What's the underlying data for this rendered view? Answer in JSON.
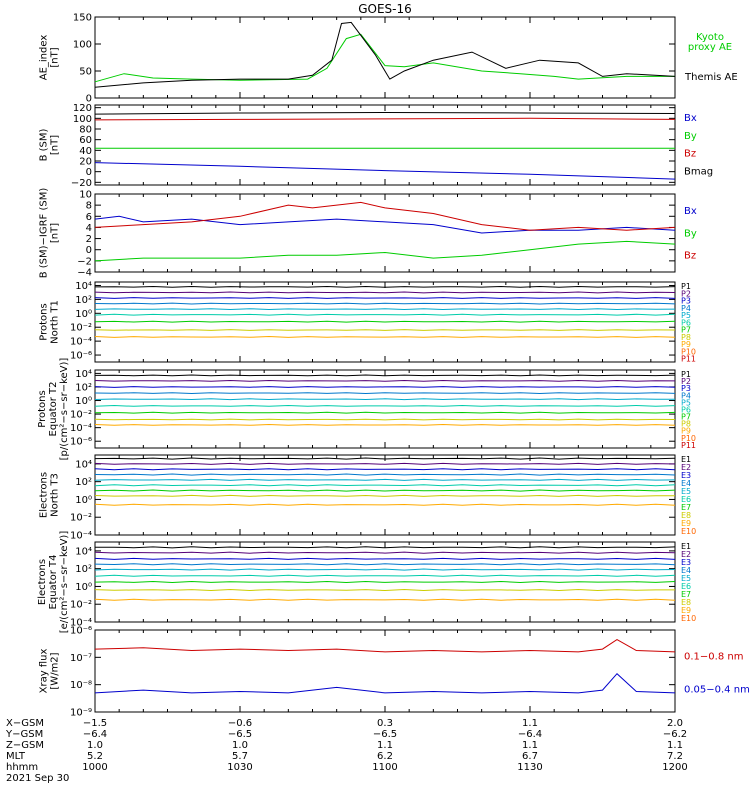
{
  "chart_data": {
    "type": "line",
    "title": "GOES-16",
    "x": [
      0,
      10,
      20,
      30,
      40,
      50,
      60,
      70,
      80,
      90,
      100,
      110,
      120
    ],
    "colors": {
      "black": "#000000",
      "blue": "#0000cc",
      "green": "#00cc00",
      "red": "#cc0000",
      "p_colors": [
        "#000000",
        "#550077",
        "#0000cc",
        "#0077cc",
        "#00aacc",
        "#00ccaa",
        "#00cc00",
        "#cccc00",
        "#ffaa00",
        "#ff6600",
        "#cc0000"
      ]
    },
    "panels": [
      {
        "id": "ae",
        "ylabel": [
          "AE_index",
          "[nT]"
        ],
        "yscale": "linear",
        "ylim": [
          0,
          150
        ],
        "ticks": [
          "0",
          "50",
          "100",
          "150"
        ],
        "tick_values": [
          0,
          50,
          100,
          150
        ],
        "legend": [
          {
            "label": "Kyoto",
            "color": "#00cc00"
          },
          {
            "label": "proxy AE",
            "color": "#00cc00"
          },
          {
            "label": "Themis AE",
            "color": "#000000"
          }
        ],
        "series": [
          {
            "name": "Kyoto proxy AE",
            "color": "#00cc00",
            "t": [
              0,
              6,
              12,
              20,
              30,
              44,
              48,
              52,
              55,
              60,
              64,
              70,
              80,
              88,
              95,
              100,
              110,
              120
            ],
            "v": [
              30,
              45,
              37,
              35,
              33,
              35,
              55,
              110,
              118,
              60,
              58,
              65,
              50,
              45,
              40,
              35,
              40,
              40
            ]
          },
          {
            "name": "Themis AE",
            "color": "#000000",
            "t": [
              0,
              10,
              20,
              30,
              40,
              45,
              49,
              51,
              53,
              58,
              61,
              64,
              70,
              78,
              85,
              92,
              100,
              105,
              110,
              120
            ],
            "v": [
              20,
              28,
              33,
              35,
              35,
              42,
              70,
              138,
              140,
              80,
              35,
              50,
              70,
              85,
              55,
              70,
              65,
              40,
              45,
              40
            ]
          }
        ]
      },
      {
        "id": "bsm",
        "ylabel": [
          "B (SM)",
          "[nT]"
        ],
        "yscale": "linear",
        "ylim": [
          -25,
          125
        ],
        "ticks": [
          "−20",
          "0",
          "20",
          "40",
          "60",
          "80",
          "100",
          "120"
        ],
        "tick_values": [
          -20,
          0,
          20,
          40,
          60,
          80,
          100,
          120
        ],
        "legend": [
          {
            "label": "Bx",
            "color": "#0000cc"
          },
          {
            "label": "By",
            "color": "#00cc00"
          },
          {
            "label": "Bz",
            "color": "#cc0000"
          },
          {
            "label": "Bmag",
            "color": "#000000"
          }
        ],
        "series": [
          {
            "name": "Bmag",
            "color": "#000000",
            "t": [
              0,
              30,
              60,
              90,
              120
            ],
            "v": [
              108,
              110,
              111,
              110,
              109
            ]
          },
          {
            "name": "Bz",
            "color": "#cc0000",
            "t": [
              0,
              30,
              60,
              90,
              120
            ],
            "v": [
              97,
              98,
              99,
              100,
              98
            ]
          },
          {
            "name": "By",
            "color": "#00cc00",
            "t": [
              0,
              30,
              60,
              90,
              120
            ],
            "v": [
              44,
              44,
              44,
              44,
              44
            ]
          },
          {
            "name": "Bx",
            "color": "#0000cc",
            "t": [
              0,
              30,
              60,
              90,
              120
            ],
            "v": [
              17,
              10,
              2,
              -5,
              -14
            ]
          }
        ]
      },
      {
        "id": "dbsm",
        "ylabel": [
          "B (SM)−IGRF (SM)",
          "[nT]"
        ],
        "yscale": "linear",
        "ylim": [
          -4,
          10
        ],
        "ticks": [
          "−4",
          "−2",
          "0",
          "2",
          "4",
          "6",
          "8",
          "10"
        ],
        "tick_values": [
          -4,
          -2,
          0,
          2,
          4,
          6,
          8,
          10
        ],
        "legend": [
          {
            "label": "Bx",
            "color": "#0000cc"
          },
          {
            "label": "By",
            "color": "#00cc00"
          },
          {
            "label": "Bz",
            "color": "#cc0000"
          }
        ],
        "series": [
          {
            "name": "Bx",
            "color": "#0000cc",
            "t": [
              0,
              5,
              10,
              20,
              30,
              40,
              50,
              60,
              70,
              80,
              90,
              100,
              110,
              120
            ],
            "v": [
              5.5,
              6,
              5,
              5.5,
              4.5,
              5,
              5.5,
              5,
              4.5,
              3,
              3.5,
              3.5,
              4,
              3.5
            ]
          },
          {
            "name": "Bz",
            "color": "#cc0000",
            "t": [
              0,
              10,
              20,
              30,
              40,
              45,
              50,
              55,
              60,
              70,
              80,
              90,
              100,
              110,
              120
            ],
            "v": [
              4,
              4.5,
              5,
              6,
              8,
              7.5,
              8,
              8.5,
              7.5,
              6.5,
              4.5,
              3.5,
              4,
              3.5,
              4
            ]
          },
          {
            "name": "By",
            "color": "#00cc00",
            "t": [
              0,
              10,
              20,
              30,
              40,
              50,
              60,
              70,
              80,
              90,
              100,
              110,
              120
            ],
            "v": [
              -2,
              -1.5,
              -1.5,
              -1.5,
              -1,
              -1,
              -0.5,
              -1.5,
              -1,
              0,
              1,
              1.5,
              1
            ]
          }
        ]
      },
      {
        "id": "pn",
        "ylabel": [
          "Protons",
          "North T1"
        ],
        "yscale": "log",
        "ylim": [
          -7,
          4.5
        ],
        "ticks": [
          "10⁴",
          "10²",
          "10⁰",
          "10⁻²",
          "10⁻⁴",
          "10⁻⁶"
        ],
        "tick_values": [
          4,
          2,
          0,
          -2,
          -4,
          -6
        ],
        "legend_small": [
          "P1",
          "P2",
          "P3",
          "P4",
          "P5",
          "P6",
          "P7",
          "P8",
          "P9",
          "P10",
          "P11"
        ],
        "levels": [
          3.8,
          3.0,
          2.2,
          1.4,
          0.6,
          -0.2,
          -1.2,
          -2.4,
          -3.4
        ]
      },
      {
        "id": "pe",
        "ylabel": [
          "Protons",
          "Equator T2",
          "[p/(cm²−s−sr−keV)]"
        ],
        "yscale": "log",
        "ylim": [
          -7,
          4.5
        ],
        "ticks": [
          "10⁴",
          "10²",
          "10⁰",
          "10⁻²",
          "10⁻⁴",
          "10⁻⁶"
        ],
        "tick_values": [
          4,
          2,
          0,
          -2,
          -4,
          -6
        ],
        "legend_small": [
          "P1",
          "P2",
          "P3",
          "P4",
          "P5",
          "P6",
          "P7",
          "P8",
          "P9",
          "P10",
          "P11"
        ],
        "levels": [
          3.7,
          2.9,
          2.0,
          1.1,
          0.2,
          -0.8,
          -1.8,
          -2.8,
          -3.6
        ]
      },
      {
        "id": "en",
        "ylabel": [
          "Electrons",
          "North T3"
        ],
        "yscale": "log",
        "ylim": [
          -4,
          5
        ],
        "ticks": [
          "10⁴",
          "10²",
          "10⁰",
          "10⁻²",
          "10⁻⁴"
        ],
        "tick_values": [
          4,
          2,
          0,
          -2,
          -4
        ],
        "legend_small": [
          "E1",
          "E2",
          "E3",
          "E4",
          "E5",
          "E6",
          "E7",
          "E8",
          "E9",
          "E10"
        ],
        "levels": [
          4.6,
          4.0,
          3.4,
          2.8,
          2.2,
          1.6,
          1.0,
          0.4,
          -0.6
        ]
      },
      {
        "id": "ee",
        "ylabel": [
          "Electrons",
          "Equator T4",
          "[e/(cm²−s−sr−keV)]"
        ],
        "yscale": "log",
        "ylim": [
          -4,
          5
        ],
        "ticks": [
          "10⁴",
          "10²",
          "10⁰",
          "10⁻²",
          "10⁻⁴"
        ],
        "tick_values": [
          4,
          2,
          0,
          -2,
          -4
        ],
        "legend_small": [
          "E1",
          "E2",
          "E3",
          "E4",
          "E5",
          "E6",
          "E7",
          "E8",
          "E9",
          "E10"
        ],
        "levels": [
          4.4,
          3.8,
          3.1,
          2.5,
          1.9,
          1.2,
          0.5,
          -0.4,
          -1.5
        ]
      },
      {
        "id": "xray",
        "ylabel": [
          "Xray flux",
          "[W/m2]"
        ],
        "yscale": "log",
        "ylim": [
          -9,
          -6
        ],
        "ticks": [
          "10⁻⁶",
          "10⁻⁷",
          "10⁻⁸",
          "10⁻⁹"
        ],
        "tick_values": [
          -6,
          -7,
          -8,
          -9
        ],
        "legend": [
          {
            "label": "0.1−0.8 nm",
            "color": "#cc0000"
          },
          {
            "label": "0.05−0.4 nm",
            "color": "#0000cc"
          }
        ],
        "series": [
          {
            "name": "0.1−0.8 nm",
            "color": "#cc0000",
            "t": [
              0,
              10,
              20,
              30,
              40,
              50,
              60,
              70,
              80,
              90,
              100,
              105,
              108,
              112,
              120
            ],
            "v": [
              -6.7,
              -6.65,
              -6.75,
              -6.7,
              -6.75,
              -6.7,
              -6.8,
              -6.75,
              -6.8,
              -6.75,
              -6.8,
              -6.7,
              -6.35,
              -6.75,
              -6.8
            ]
          },
          {
            "name": "0.05−0.4 nm",
            "color": "#0000cc",
            "t": [
              0,
              10,
              20,
              30,
              40,
              50,
              60,
              70,
              80,
              90,
              100,
              105,
              108,
              112,
              120
            ],
            "v": [
              -8.3,
              -8.2,
              -8.3,
              -8.25,
              -8.3,
              -8.1,
              -8.3,
              -8.25,
              -8.3,
              -8.25,
              -8.3,
              -8.2,
              -7.6,
              -8.25,
              -8.3
            ]
          }
        ]
      }
    ],
    "x_axis": {
      "rows": [
        {
          "label": "X−GSM",
          "values": [
            "−1.5",
            "−0.6",
            "0.3",
            "1.1",
            "2.0"
          ]
        },
        {
          "label": "Y−GSM",
          "values": [
            "−6.4",
            "−6.5",
            "−6.5",
            "−6.4",
            "−6.2"
          ]
        },
        {
          "label": "Z−GSM",
          "values": [
            "1.0",
            "1.0",
            "1.1",
            "1.1",
            "1.1"
          ]
        },
        {
          "label": "MLT",
          "values": [
            "5.2",
            "5.7",
            "6.2",
            "6.7",
            "7.2"
          ]
        },
        {
          "label": "hhmm",
          "values": [
            "1000",
            "1030",
            "1100",
            "1130",
            "1200"
          ]
        }
      ],
      "date": "2021 Sep 30",
      "major_ticks": [
        0,
        30,
        60,
        90,
        120
      ]
    }
  }
}
